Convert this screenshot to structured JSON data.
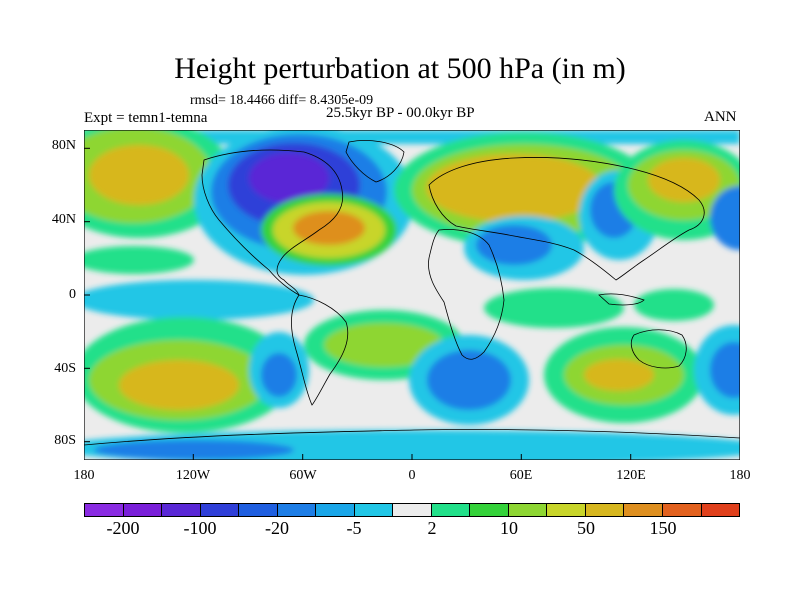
{
  "title": "Height perturbation at 500 hPa (in m)",
  "stats": "rmsd= 18.4466 diff= 8.4305e-09",
  "expt": "Expt = temn1-temna",
  "period": "25.5kyr BP - 00.0kyr BP",
  "season": "ANN",
  "lat_labels": [
    "80N",
    "40N",
    "0",
    "40S",
    "80S"
  ],
  "lon_labels": [
    "180",
    "120W",
    "60W",
    "0",
    "60E",
    "120E",
    "180"
  ],
  "colorbar": {
    "colors": [
      "#8a2be2",
      "#7a1fd9",
      "#5a28d6",
      "#2f3fd8",
      "#1f5fe0",
      "#1e7ee6",
      "#1aa6e8",
      "#22c6e6",
      "#ececec",
      "#22e08a",
      "#34d23a",
      "#8ed633",
      "#c8d52a",
      "#d7b71f",
      "#de8f1f",
      "#e2611e",
      "#e0401c"
    ],
    "labels": [
      "-200",
      "-100",
      "-20",
      "-5",
      "2",
      "10",
      "50",
      "150"
    ]
  },
  "field_colors": {
    "ocean_bg": "#ececec",
    "coast": "#000000"
  }
}
